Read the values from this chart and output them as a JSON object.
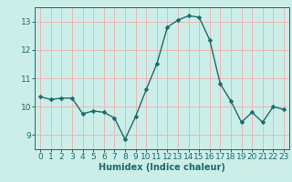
{
  "x": [
    0,
    1,
    2,
    3,
    4,
    5,
    6,
    7,
    8,
    9,
    10,
    11,
    12,
    13,
    14,
    15,
    16,
    17,
    18,
    19,
    20,
    21,
    22,
    23
  ],
  "y": [
    10.35,
    10.25,
    10.3,
    10.3,
    9.75,
    9.85,
    9.8,
    9.6,
    8.85,
    9.65,
    10.6,
    11.5,
    12.8,
    13.05,
    13.2,
    13.15,
    12.35,
    10.8,
    10.2,
    9.45,
    9.8,
    9.45,
    10.0,
    9.9
  ],
  "line_color": "#1a6b6b",
  "marker": "D",
  "marker_size": 2.5,
  "line_width": 1.0,
  "xlabel": "Humidex (Indice chaleur)",
  "ylim": [
    8.5,
    13.5
  ],
  "xlim": [
    -0.5,
    23.5
  ],
  "yticks": [
    9,
    10,
    11,
    12,
    13
  ],
  "xticks": [
    0,
    1,
    2,
    3,
    4,
    5,
    6,
    7,
    8,
    9,
    10,
    11,
    12,
    13,
    14,
    15,
    16,
    17,
    18,
    19,
    20,
    21,
    22,
    23
  ],
  "background_color": "#cceee8",
  "plot_bg_color": "#cceee8",
  "grid_color": "#e8b8b8",
  "tick_color": "#1a6b6b",
  "label_color": "#1a6b6b",
  "xlabel_fontsize": 7,
  "tick_fontsize": 6.5
}
